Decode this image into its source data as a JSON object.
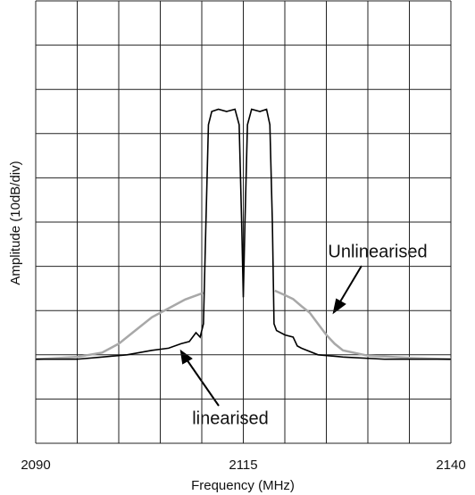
{
  "chart_data": {
    "type": "line",
    "xlabel": "Frequency (MHz)",
    "ylabel": "Amplitude (10dB/div)",
    "xlim": [
      2090,
      2140
    ],
    "ylim": [
      0,
      100
    ],
    "xticks": [
      2090,
      2115,
      2140
    ],
    "xgrid": [
      2090,
      2095,
      2100,
      2105,
      2110,
      2115,
      2120,
      2125,
      2130,
      2135,
      2140
    ],
    "ygrid": [
      0,
      10,
      20,
      30,
      40,
      50,
      60,
      70,
      80,
      90,
      100
    ],
    "grid": true,
    "annotations": [
      "Unlinearised",
      "linearised"
    ],
    "series": [
      {
        "name": "Unlinearised",
        "color": "#a8a8a8",
        "x": [
          2090,
          2095,
          2098,
          2100,
          2102,
          2104,
          2106,
          2108,
          2110.2,
          2114,
          2118.8,
          2120,
          2121,
          2122,
          2123,
          2124,
          2125,
          2126,
          2127,
          2130,
          2135,
          2140
        ],
        "values": [
          19,
          19.5,
          20.5,
          22.5,
          25.5,
          28.5,
          30.5,
          32.5,
          34,
          null,
          34.5,
          33.5,
          32.6,
          31,
          29.5,
          27,
          24.5,
          22.5,
          21,
          19.8,
          19.3,
          19
        ]
      },
      {
        "name": "linearised",
        "color": "#000000",
        "x": [
          2090,
          2095,
          2098,
          2101,
          2104,
          2106,
          2107.5,
          2108.5,
          2109.3,
          2109.8,
          2110.2,
          2110.5,
          2110.8,
          2111.2,
          2112,
          2113,
          2114,
          2114.5,
          2114.8,
          2115,
          2115.2,
          2115.5,
          2116,
          2117,
          2117.8,
          2118.2,
          2118.5,
          2118.7,
          2119,
          2120,
          2121,
          2121.5,
          2122,
          2124,
          2127,
          2132,
          2140
        ],
        "values": [
          19,
          19,
          19.5,
          20,
          21,
          21.5,
          22.5,
          23,
          25,
          24,
          27,
          50,
          72,
          75,
          75.5,
          75,
          75.5,
          72,
          50,
          33,
          50,
          72,
          75.5,
          75,
          75.5,
          72,
          50,
          27,
          25.5,
          24.5,
          24,
          22,
          21.5,
          20,
          19.5,
          19,
          19
        ]
      }
    ]
  }
}
